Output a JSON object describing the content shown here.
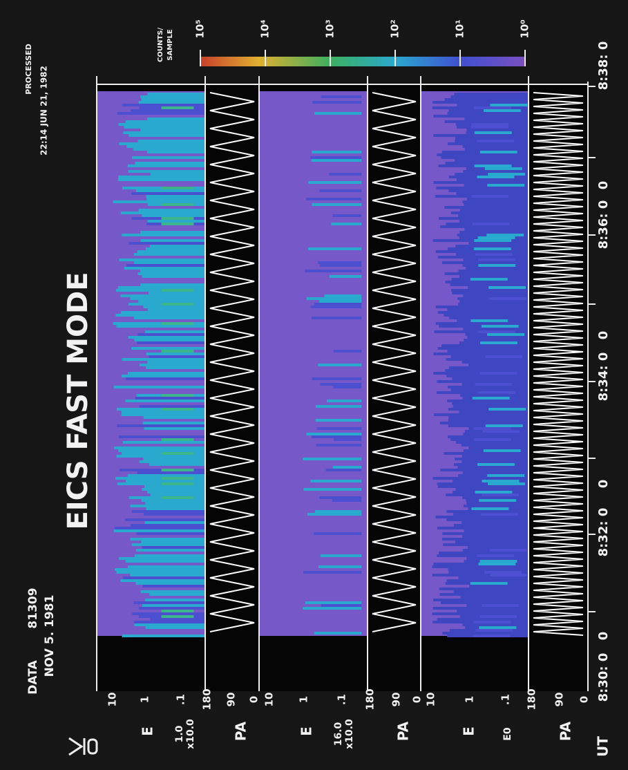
{
  "title": "EICS FAST MODE",
  "header": {
    "data": "DATA",
    "id": "81309",
    "date": "NOV   5. 1981",
    "processed": "PROCESSED",
    "processed_time": "22:14   JUN 21, 1982"
  },
  "colorbar": {
    "unit": [
      "COUNTS/",
      "SAMPLE"
    ],
    "ticks": [
      "10⁵",
      "10⁴",
      "10³",
      "10²",
      "10¹",
      "10⁰"
    ]
  },
  "panels": [
    {
      "label": "E",
      "scale": [
        "1.0",
        "x10.0"
      ],
      "ticks": [
        "10",
        "1",
        ".1"
      ]
    },
    {
      "label": "PA",
      "ticks": [
        "180",
        "90",
        "0"
      ]
    },
    {
      "label": "E",
      "scale": [
        "16.0",
        "x10.0"
      ],
      "ticks": [
        "10",
        "1",
        ".1"
      ]
    },
    {
      "label": "PA",
      "ticks": [
        "180",
        "90",
        "0"
      ]
    },
    {
      "label": "E",
      "scale": [
        "E0"
      ],
      "ticks": [
        "10",
        "1",
        ".1"
      ]
    },
    {
      "label": "PA",
      "ticks": [
        "180",
        "90",
        "0"
      ]
    }
  ],
  "time_axis": {
    "label": "UT",
    "ticks": [
      "8:30: 0",
      "0",
      "8:32: 0",
      "0",
      "8:34: 0",
      "0",
      "8:36: 0",
      "0",
      "8:38: 0"
    ]
  }
}
